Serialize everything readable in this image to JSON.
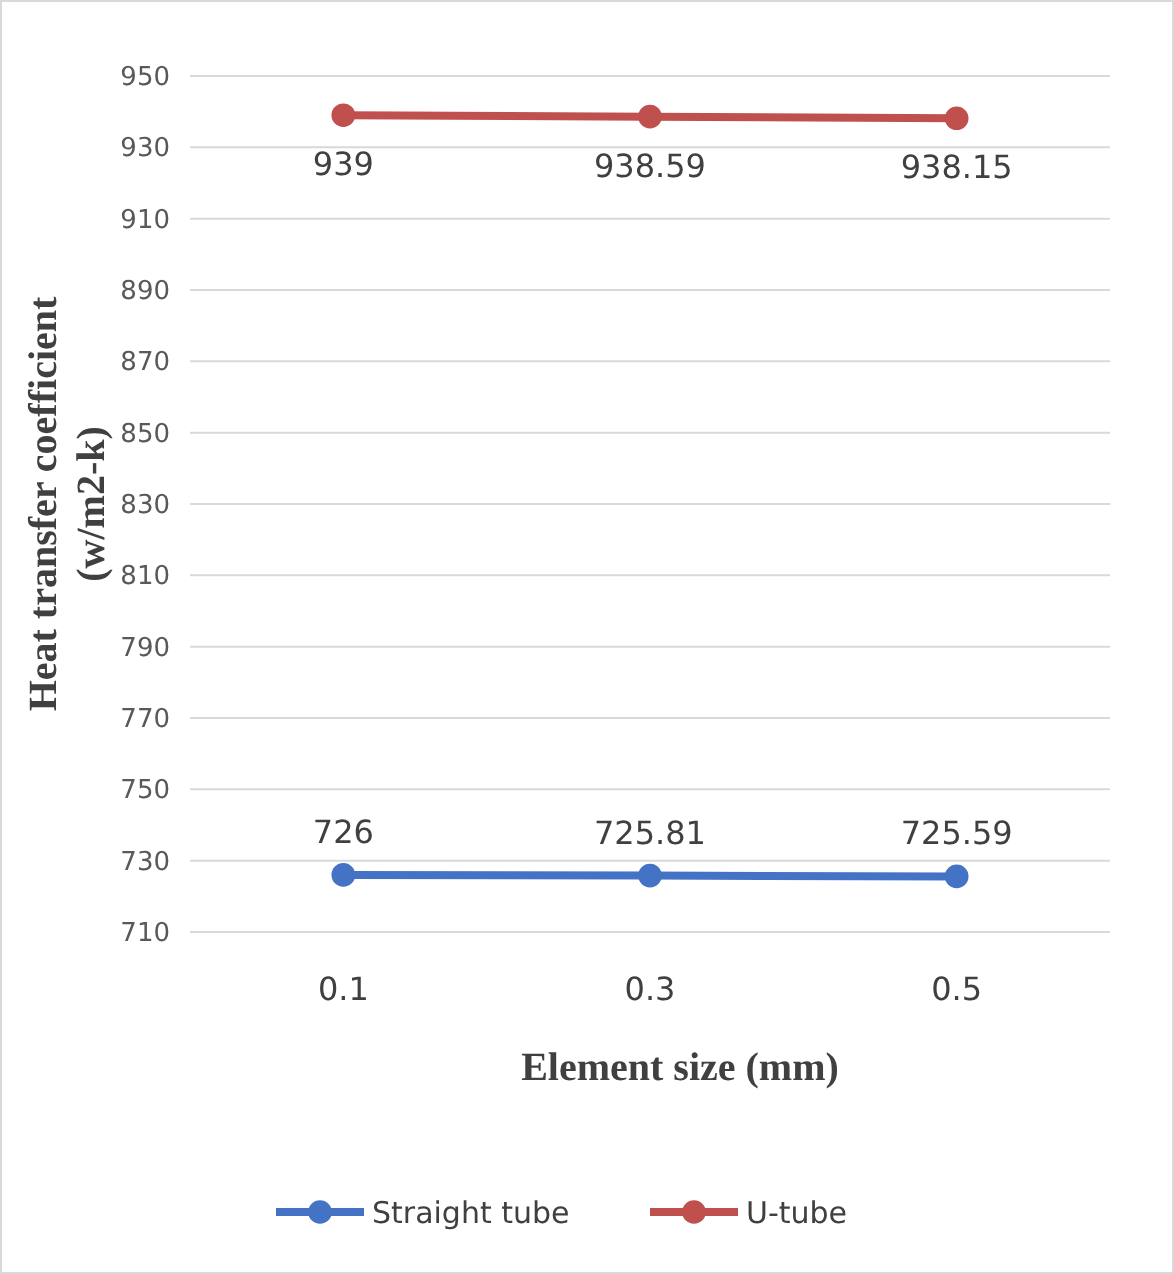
{
  "chart_data": {
    "type": "line",
    "xlabel": "Element size (mm)",
    "ylabel": "Heat transfer coefficient\n(w/m2-k)",
    "categories": [
      "0.1",
      "0.3",
      "0.5"
    ],
    "series": [
      {
        "name": "Straight tube",
        "color": "#4472c4",
        "values": [
          726,
          725.81,
          725.59
        ]
      },
      {
        "name": "U-tube",
        "color": "#c0504d",
        "values": [
          939,
          938.59,
          938.15
        ]
      }
    ],
    "ylim": [
      710,
      950
    ],
    "yticks": [
      710,
      730,
      750,
      770,
      790,
      810,
      830,
      850,
      870,
      890,
      910,
      930,
      950
    ],
    "grid": "y",
    "legend": "bottom",
    "marker": "circle",
    "data_labels": true
  }
}
